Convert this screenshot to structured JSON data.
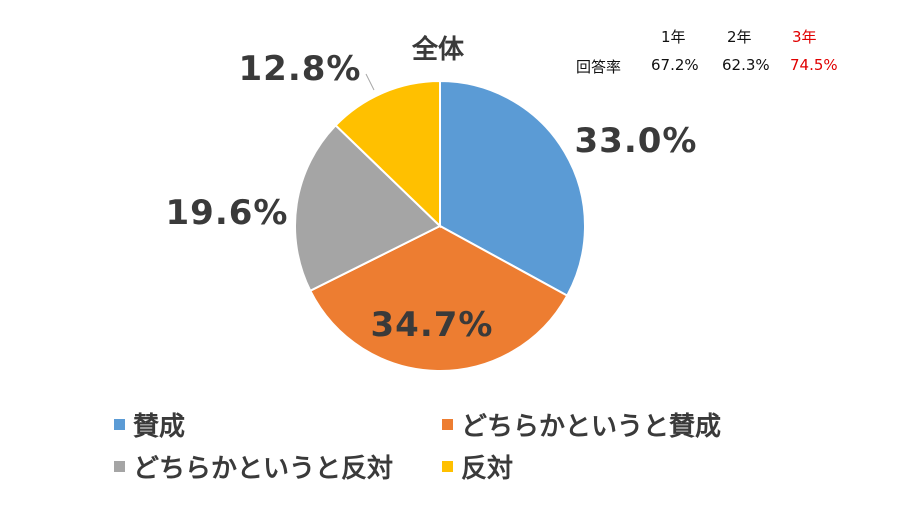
{
  "chart_data": {
    "type": "pie",
    "title": "全体",
    "categories": [
      "賛成",
      "どちらかというと賛成",
      "どちらかというと反対",
      "反対"
    ],
    "values": [
      33.0,
      34.7,
      19.6,
      12.8
    ],
    "labels": [
      "33.0%",
      "34.7%",
      "19.6%",
      "12.8%"
    ],
    "colors": [
      "#5b9bd5",
      "#ed7d31",
      "#a5a5a5",
      "#ffc000"
    ],
    "legend": "bottom"
  },
  "response_rate": {
    "label": "回答率",
    "years": [
      {
        "name": "1年",
        "rate": "67.2%",
        "highlight": false
      },
      {
        "name": "2年",
        "rate": "62.3%",
        "highlight": false
      },
      {
        "name": "3年",
        "rate": "74.5%",
        "highlight": true
      }
    ],
    "highlight_color": "#e00000"
  }
}
